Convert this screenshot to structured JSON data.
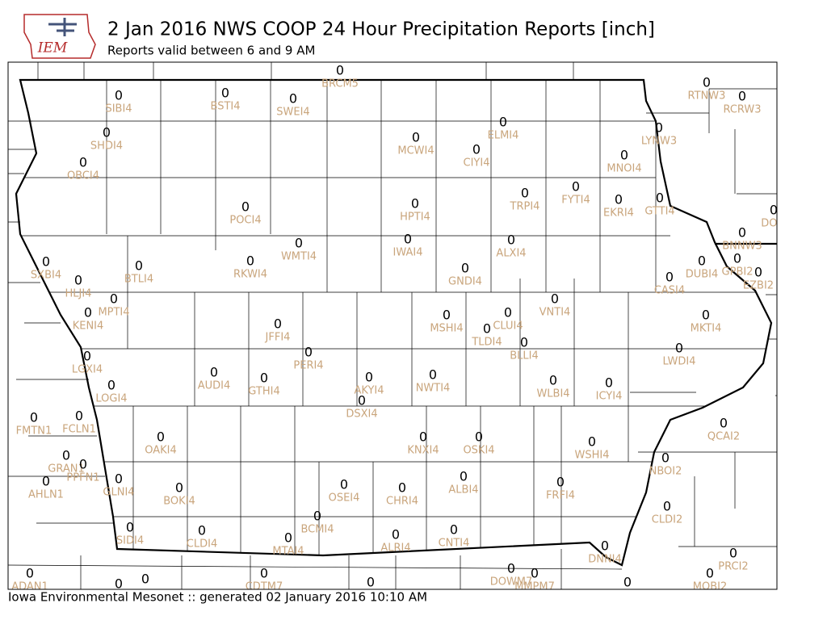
{
  "header": {
    "logo": "IEM",
    "title": "2 Jan 2016 NWS COOP 24 Hour Precipitation Reports [inch]",
    "subtitle": "Reports valid between 6 and 9 AM"
  },
  "footer": "Iowa Environmental Mesonet :: generated 02 January 2016 10:10 AM",
  "stations": [
    {
      "id": "BRCM5",
      "value": 0
    },
    {
      "id": "SIBI4",
      "value": 0
    },
    {
      "id": "BSTI4",
      "value": 0
    },
    {
      "id": "SWEI4",
      "value": 0
    },
    {
      "id": "RTNW3",
      "value": 0
    },
    {
      "id": "RCRW3",
      "value": 0
    },
    {
      "id": "ELMI4",
      "value": 0
    },
    {
      "id": "SHDI4",
      "value": 0
    },
    {
      "id": "MCWI4",
      "value": 0
    },
    {
      "id": "CIYI4",
      "value": 0
    },
    {
      "id": "LYNW3",
      "value": 0
    },
    {
      "id": "OBCI4",
      "value": 0
    },
    {
      "id": "MNOI4",
      "value": 0
    },
    {
      "id": "POCI4",
      "value": 0
    },
    {
      "id": "HPTI4",
      "value": 0
    },
    {
      "id": "TRPI4",
      "value": 0
    },
    {
      "id": "FYTI4",
      "value": 0
    },
    {
      "id": "EKRI4",
      "value": 0
    },
    {
      "id": "GTTI4",
      "value": 0
    },
    {
      "id": "DOM",
      "value": 0
    },
    {
      "id": "IWAI4",
      "value": 0
    },
    {
      "id": "ALXI4",
      "value": 0
    },
    {
      "id": "WMTI4",
      "value": 0
    },
    {
      "id": "BNNW3",
      "value": 0
    },
    {
      "id": "SXBI4",
      "value": 0
    },
    {
      "id": "BTLI4",
      "value": 0
    },
    {
      "id": "RKWI4",
      "value": 0
    },
    {
      "id": "GNDI4",
      "value": 0
    },
    {
      "id": "DUBI4",
      "value": 0
    },
    {
      "id": "GPBI2",
      "value": 0
    },
    {
      "id": "EZBI2",
      "value": 0
    },
    {
      "id": "HLJI4",
      "value": 0
    },
    {
      "id": "CASI4",
      "value": 0
    },
    {
      "id": "MPTI4",
      "value": 0
    },
    {
      "id": "VNTI4",
      "value": 0
    },
    {
      "id": "KENI4",
      "value": 0
    },
    {
      "id": "JFFI4",
      "value": 0
    },
    {
      "id": "MSHI4",
      "value": 0
    },
    {
      "id": "CLUI4",
      "value": 0
    },
    {
      "id": "TLDI4",
      "value": 0
    },
    {
      "id": "MKTI4",
      "value": 0
    },
    {
      "id": "BLLI4",
      "value": 0
    },
    {
      "id": "PERI4",
      "value": 0
    },
    {
      "id": "LWDI4",
      "value": 0
    },
    {
      "id": "LGXI4",
      "value": 0
    },
    {
      "id": "AUDI4",
      "value": 0
    },
    {
      "id": "GTHI4",
      "value": 0
    },
    {
      "id": "AKYI4",
      "value": 0
    },
    {
      "id": "NWTI4",
      "value": 0
    },
    {
      "id": "WLBI4",
      "value": 0
    },
    {
      "id": "ICYI4",
      "value": 0
    },
    {
      "id": "LOGI4",
      "value": 0
    },
    {
      "id": "DSXI4",
      "value": 0
    },
    {
      "id": "FMTN1",
      "value": 0
    },
    {
      "id": "FCLN1",
      "value": 0
    },
    {
      "id": "QCAI2",
      "value": 0
    },
    {
      "id": "OAKI4",
      "value": 0
    },
    {
      "id": "KNXI4",
      "value": 0
    },
    {
      "id": "OSKI4",
      "value": 0
    },
    {
      "id": "WSHI4",
      "value": 0
    },
    {
      "id": "GRAN1",
      "value": 0
    },
    {
      "id": "NBOI2",
      "value": 0
    },
    {
      "id": "PPFN1",
      "value": 0
    },
    {
      "id": "GLNI4",
      "value": 0
    },
    {
      "id": "AHLN1",
      "value": 0
    },
    {
      "id": "BOKI4",
      "value": 0
    },
    {
      "id": "OSEI4",
      "value": 0
    },
    {
      "id": "CHRI4",
      "value": 0
    },
    {
      "id": "ALBI4",
      "value": 0
    },
    {
      "id": "FRFI4",
      "value": 0
    },
    {
      "id": "CLDI2",
      "value": 0
    },
    {
      "id": "BCMI4",
      "value": 0
    },
    {
      "id": "SIDI4",
      "value": 0
    },
    {
      "id": "CLDI4",
      "value": 0
    },
    {
      "id": "MTAI4",
      "value": 0
    },
    {
      "id": "ALRI4",
      "value": 0
    },
    {
      "id": "CNTI4",
      "value": 0
    },
    {
      "id": "PRCI2",
      "value": 0
    },
    {
      "id": "DNNI4",
      "value": 0
    },
    {
      "id": "DOWM7",
      "value": 0
    },
    {
      "id": "MMPM7",
      "value": 0
    },
    {
      "id": "MOBI2",
      "value": 0
    },
    {
      "id": "ADAN1",
      "value": 0
    },
    {
      "id": "CDTM7",
      "value": 0
    },
    {
      "id": null,
      "value": 0
    },
    {
      "id": null,
      "value": 0
    },
    {
      "id": null,
      "value": 0
    },
    {
      "id": null,
      "value": 0
    }
  ]
}
